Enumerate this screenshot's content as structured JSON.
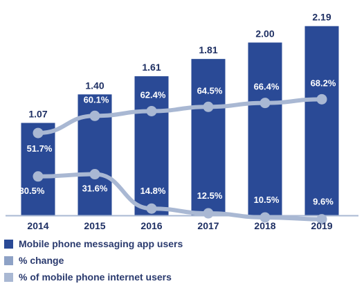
{
  "colors": {
    "bars": "#2a4a96",
    "change_line": "#a9b8d3",
    "internet_line": "#a9b8d3",
    "pct_label": "#ffffff",
    "value_label": "#1e2f63",
    "axis_text": "#1e2f63",
    "baseline": "#a9b8d3"
  },
  "chart_data": {
    "type": "bar",
    "categories": [
      "2014",
      "2015",
      "2016",
      "2017",
      "2018",
      "2019"
    ],
    "series": [
      {
        "name": "Mobile phone messaging app users",
        "kind": "bar",
        "values": [
          1.07,
          1.4,
          1.61,
          1.81,
          2.0,
          2.19
        ],
        "labels": [
          "1.07",
          "1.40",
          "1.61",
          "1.81",
          "2.00",
          "2.19"
        ]
      },
      {
        "name": "% change",
        "kind": "line",
        "values": [
          30.5,
          31.6,
          14.8,
          12.5,
          10.5,
          9.6
        ],
        "labels": [
          "30.5%",
          "31.6%",
          "14.8%",
          "12.5%",
          "10.5%",
          "9.6%"
        ]
      },
      {
        "name": "% of mobile phone internet users",
        "kind": "line",
        "values": [
          51.7,
          60.1,
          62.4,
          64.5,
          66.4,
          68.2
        ],
        "labels": [
          "51.7%",
          "60.1%",
          "62.4%",
          "64.5%",
          "66.4%",
          "68.2%"
        ]
      }
    ],
    "ylim": [
      0,
      2.3
    ],
    "grid": false,
    "legend_position": "bottom-left"
  },
  "legend": [
    {
      "label": "Mobile phone messaging app users"
    },
    {
      "label": "% change"
    },
    {
      "label": "% of mobile phone internet users"
    }
  ]
}
